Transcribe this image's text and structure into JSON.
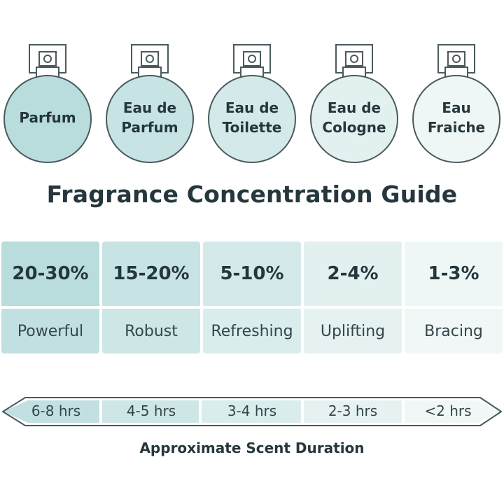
{
  "bottles": [
    {
      "name": "Parfum",
      "color": "#b9dcdd"
    },
    {
      "name": "Eau de\nParfum",
      "color": "#c7e3e3"
    },
    {
      "name": "Eau de\nToilette",
      "color": "#d4eaea"
    },
    {
      "name": "Eau de\nCologne",
      "color": "#e2f0f0"
    },
    {
      "name": "Eau\nFraiche",
      "color": "#eff6f6"
    }
  ],
  "title": "Fragrance Concentration Guide",
  "concentrations": [
    {
      "percent": "20-30%",
      "description": "Powerful",
      "color_top": "#b9dcdd",
      "color_bottom": "#c2e0e1"
    },
    {
      "percent": "15-20%",
      "description": "Robust",
      "color_top": "#c7e3e3",
      "color_bottom": "#cde6e6"
    },
    {
      "percent": "5-10%",
      "description": "Refreshing",
      "color_top": "#d4eaea",
      "color_bottom": "#daeded"
    },
    {
      "percent": "2-4%",
      "description": "Uplifting",
      "color_top": "#e2f0f0",
      "color_bottom": "#e6f2f2"
    },
    {
      "percent": "1-3%",
      "description": "Bracing",
      "color_top": "#eff6f6",
      "color_bottom": "#f1f7f7"
    }
  ],
  "durations": [
    {
      "label": "6-8 hrs"
    },
    {
      "label": "4-5 hrs"
    },
    {
      "label": "3-4 hrs"
    },
    {
      "label": "2-3 hrs"
    },
    {
      "label": "<2 hrs"
    }
  ],
  "duration_caption": "Approximate Scent Duration",
  "stroke_color": "#4a5a5e"
}
